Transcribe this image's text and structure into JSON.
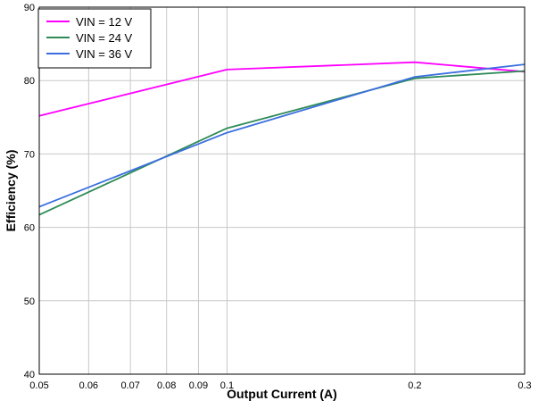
{
  "chart_data": {
    "type": "line",
    "title": "",
    "xlabel": "Output Current (A)",
    "ylabel": "Efficiency (%)",
    "x_scale": "log",
    "xlim": [
      0.05,
      0.3
    ],
    "ylim": [
      40,
      90
    ],
    "x_ticks": [
      {
        "value": 0.05,
        "label": "0.05"
      },
      {
        "value": 0.06,
        "label": "0.06"
      },
      {
        "value": 0.07,
        "label": "0.07"
      },
      {
        "value": 0.08,
        "label": "0.08"
      },
      {
        "value": 0.09,
        "label": "0.09"
      },
      {
        "value": 0.1,
        "label": "0.1"
      },
      {
        "value": 0.2,
        "label": "0.2"
      },
      {
        "value": 0.3,
        "label": "0.3"
      }
    ],
    "y_ticks": [
      {
        "value": 40,
        "label": "40"
      },
      {
        "value": 50,
        "label": "50"
      },
      {
        "value": 60,
        "label": "60"
      },
      {
        "value": 70,
        "label": "70"
      },
      {
        "value": 80,
        "label": "80"
      },
      {
        "value": 90,
        "label": "90"
      }
    ],
    "grid": true,
    "legend_position": "top-left",
    "series": [
      {
        "name": "VIN = 12 V",
        "color": "#ff00ff",
        "x": [
          0.05,
          0.1,
          0.2,
          0.3
        ],
        "y": [
          75.2,
          81.5,
          82.5,
          81.2
        ]
      },
      {
        "name": "VIN = 24 V",
        "color": "#2e8b57",
        "x": [
          0.05,
          0.1,
          0.2,
          0.3
        ],
        "y": [
          61.7,
          73.5,
          80.3,
          81.3
        ]
      },
      {
        "name": "VIN = 36 V",
        "color": "#3b6fe0",
        "x": [
          0.05,
          0.1,
          0.2,
          0.3
        ],
        "y": [
          62.8,
          72.9,
          80.5,
          82.2
        ]
      }
    ]
  }
}
